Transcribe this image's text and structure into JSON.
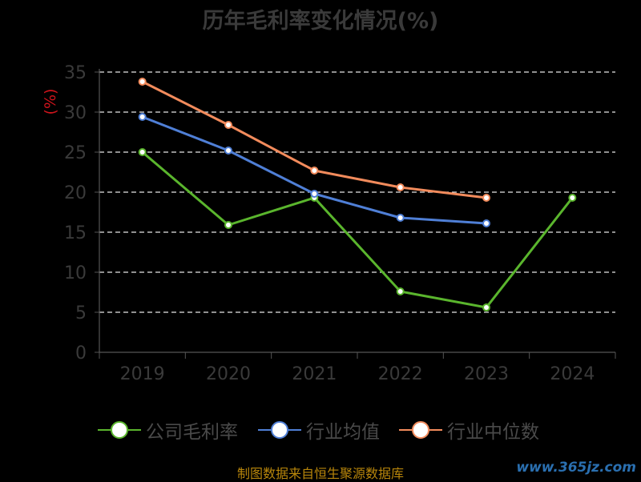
{
  "header": {
    "title": "历年毛利率变化情况(%)"
  },
  "footer": {
    "source": "制图数据来自恒生聚源数据库"
  },
  "watermark": {
    "text": "www.365jz.com"
  },
  "legend": [
    {
      "label": "公司毛利率",
      "color": "#5ab52d"
    },
    {
      "label": "行业均值",
      "color": "#4f7fd6"
    },
    {
      "label": "行业中位数",
      "color": "#f28b5c"
    }
  ],
  "chart_data": {
    "type": "line",
    "title": "历年毛利率变化情况(%)",
    "ylabel": "(%)",
    "ylabel_color": "#d0141c",
    "categories": [
      "2019",
      "2020",
      "2021",
      "2022",
      "2023",
      "2024"
    ],
    "ylim": [
      0,
      35
    ],
    "yticks": [
      0,
      5,
      10,
      15,
      20,
      25,
      30,
      35
    ],
    "grid": "dashed horizontal",
    "legend_position": "bottom",
    "series": [
      {
        "name": "公司毛利率",
        "color": "#5ab52d",
        "values": [
          25.0,
          15.9,
          19.3,
          7.6,
          5.6,
          19.3
        ]
      },
      {
        "name": "行业均值",
        "color": "#4f7fd6",
        "values": [
          29.4,
          25.2,
          19.8,
          16.8,
          16.1,
          null
        ]
      },
      {
        "name": "行业中位数",
        "color": "#f28b5c",
        "values": [
          33.8,
          28.4,
          22.7,
          20.6,
          19.3,
          null
        ]
      }
    ]
  }
}
